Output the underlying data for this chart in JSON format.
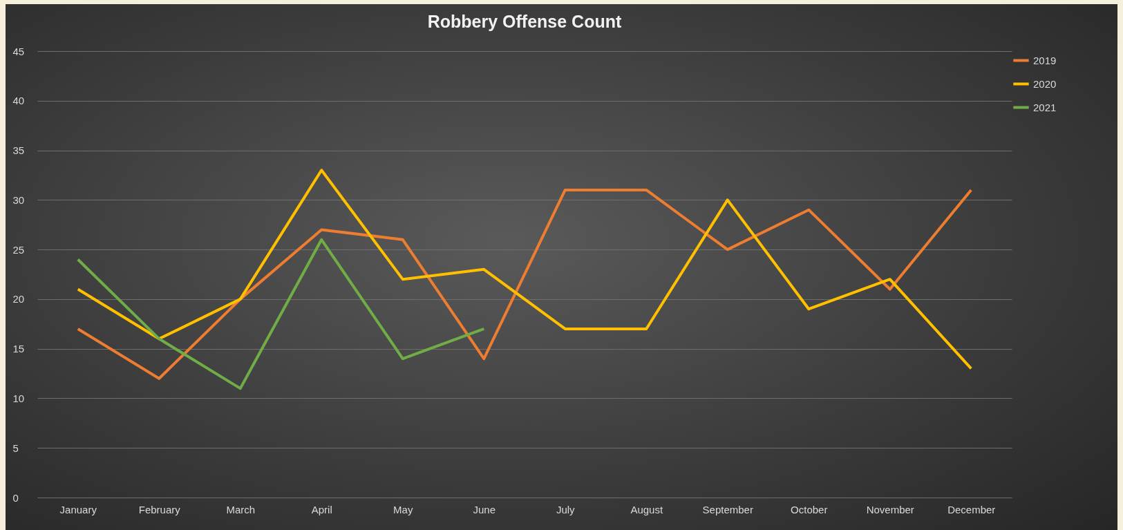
{
  "chart_data": {
    "type": "line",
    "title": "Robbery Offense Count",
    "categories": [
      "January",
      "February",
      "March",
      "April",
      "May",
      "June",
      "July",
      "August",
      "September",
      "October",
      "November",
      "December"
    ],
    "series": [
      {
        "name": "2019",
        "color": "#ed7d31",
        "values": [
          17,
          12,
          20,
          27,
          26,
          14,
          31,
          31,
          25,
          29,
          21,
          31
        ]
      },
      {
        "name": "2020",
        "color": "#ffc000",
        "values": [
          21,
          16,
          20,
          33,
          22,
          23,
          17,
          17,
          30,
          19,
          22,
          13
        ]
      },
      {
        "name": "2021",
        "color": "#70ad47",
        "values": [
          24,
          16,
          11,
          26,
          14,
          17,
          null,
          null,
          null,
          null,
          null,
          null
        ]
      }
    ],
    "ylim": [
      0,
      45
    ],
    "yticks": [
      0,
      5,
      10,
      15,
      20,
      25,
      30,
      35,
      40,
      45
    ],
    "grid": "y",
    "legend": "right",
    "marker": "none",
    "line_style": "solid"
  }
}
